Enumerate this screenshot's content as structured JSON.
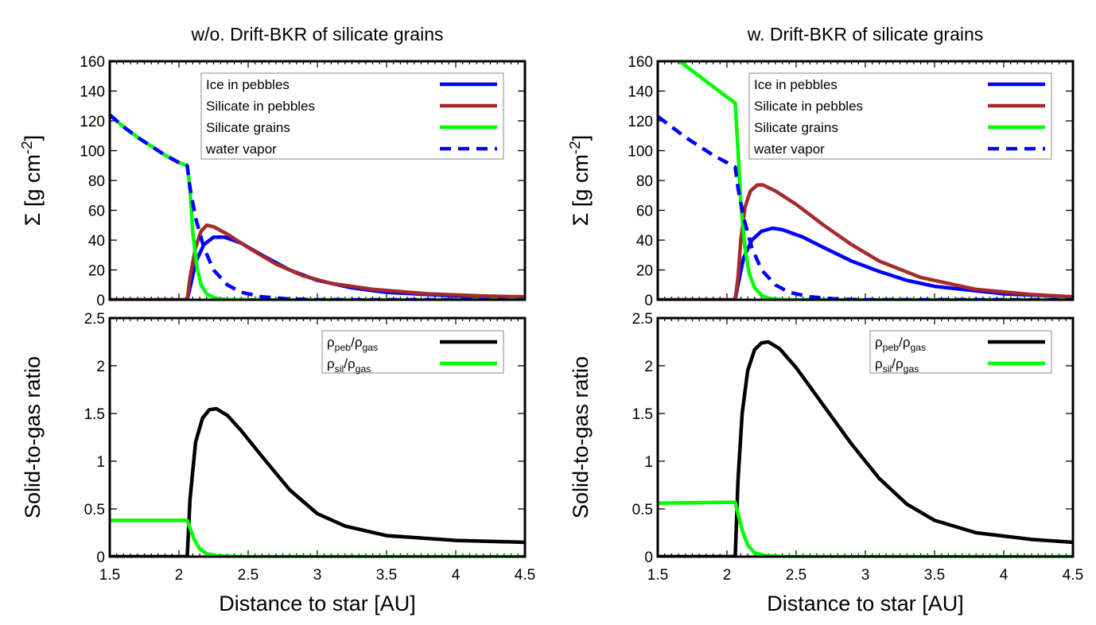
{
  "chart_data": [
    {
      "type": "line",
      "title": "w/o. Drift-BKR of silicate grains",
      "ylabel": "Σ [g cm-2]",
      "xlabel": "",
      "xlim": [
        1.5,
        4.5
      ],
      "ylim": [
        0,
        160
      ],
      "xticks": [
        "1.5",
        "2",
        "2.5",
        "3",
        "3.5",
        "4",
        "4.5"
      ],
      "yticks": [
        "0",
        "20",
        "40",
        "60",
        "80",
        "100",
        "120",
        "140",
        "160"
      ],
      "legend_position": "top-right",
      "series": [
        {
          "name": "Ice in pebbles",
          "color": "#0000ff",
          "dash": "solid",
          "x": [
            1.5,
            2.06,
            2.08,
            2.12,
            2.18,
            2.25,
            2.33,
            2.45,
            2.6,
            2.8,
            3.0,
            3.25,
            3.5,
            4.0,
            4.5
          ],
          "y": [
            0,
            0,
            8,
            25,
            37,
            42,
            42,
            38,
            30,
            20,
            13,
            8,
            5,
            2.5,
            1.5
          ]
        },
        {
          "name": "Silicate in pebbles",
          "color": "#a52a2a",
          "dash": "solid",
          "x": [
            1.5,
            2.06,
            2.08,
            2.12,
            2.16,
            2.2,
            2.25,
            2.35,
            2.5,
            2.7,
            2.9,
            3.1,
            3.4,
            3.8,
            4.2,
            4.5
          ],
          "y": [
            0,
            0,
            15,
            35,
            46,
            50,
            49,
            44,
            35,
            24,
            16,
            11,
            7,
            4,
            2.5,
            2
          ]
        },
        {
          "name": "Silicate grains",
          "color": "#00ff00",
          "dash": "solid",
          "x": [
            1.5,
            1.6,
            1.7,
            1.8,
            1.9,
            2.0,
            2.06,
            2.08,
            2.1,
            2.13,
            2.16,
            2.2,
            2.25,
            2.3,
            2.4,
            4.5
          ],
          "y": [
            124,
            116,
            109,
            103,
            97,
            92,
            90,
            75,
            45,
            22,
            10,
            4,
            1.5,
            0.5,
            0,
            0
          ]
        },
        {
          "name": "water vapor",
          "color": "#0000ff",
          "dash": "dashed",
          "x": [
            1.5,
            1.6,
            1.7,
            1.8,
            1.9,
            2.0,
            2.06,
            2.08,
            2.12,
            2.18,
            2.25,
            2.35,
            2.45,
            2.6,
            2.8,
            3.0,
            4.5
          ],
          "y": [
            124,
            116,
            109,
            103,
            97,
            92,
            90,
            75,
            55,
            35,
            20,
            10,
            5,
            2,
            0.5,
            0,
            0
          ]
        }
      ]
    },
    {
      "type": "line",
      "title": "",
      "ylabel": "Solid-to-gas ratio",
      "xlabel": "Distance to star [AU]",
      "xlim": [
        1.5,
        4.5
      ],
      "ylim": [
        0,
        2.5
      ],
      "xticks": [
        "1.5",
        "2",
        "2.5",
        "3",
        "3.5",
        "4",
        "4.5"
      ],
      "yticks": [
        "0",
        "0.5",
        "1",
        "1.5",
        "2",
        "2.5"
      ],
      "legend_position": "top-right",
      "series": [
        {
          "name": "ρpeb/ρgas",
          "color": "#000000",
          "dash": "solid",
          "x": [
            1.5,
            2.06,
            2.08,
            2.12,
            2.17,
            2.22,
            2.27,
            2.35,
            2.45,
            2.6,
            2.8,
            3.0,
            3.2,
            3.5,
            4.0,
            4.5
          ],
          "y": [
            0,
            0,
            0.6,
            1.2,
            1.45,
            1.54,
            1.55,
            1.48,
            1.32,
            1.05,
            0.7,
            0.45,
            0.32,
            0.22,
            0.17,
            0.15
          ]
        },
        {
          "name": "ρsil/ρgas",
          "color": "#00ff00",
          "dash": "solid",
          "x": [
            1.5,
            2.06,
            2.08,
            2.11,
            2.15,
            2.2,
            2.28,
            2.4,
            4.5
          ],
          "y": [
            0.38,
            0.38,
            0.3,
            0.18,
            0.08,
            0.03,
            0.01,
            0,
            0
          ]
        }
      ]
    },
    {
      "type": "line",
      "title": "w. Drift-BKR of silicate grains",
      "ylabel": "Σ [g cm-2]",
      "xlabel": "",
      "xlim": [
        1.5,
        4.5
      ],
      "ylim": [
        0,
        160
      ],
      "xticks": [
        "1.5",
        "2",
        "2.5",
        "3",
        "3.5",
        "4",
        "4.5"
      ],
      "yticks": [
        "0",
        "20",
        "40",
        "60",
        "80",
        "100",
        "120",
        "140",
        "160"
      ],
      "legend_position": "top-right",
      "series": [
        {
          "name": "Ice in pebbles",
          "color": "#0000ff",
          "dash": "solid",
          "x": [
            1.5,
            2.06,
            2.08,
            2.12,
            2.18,
            2.25,
            2.33,
            2.4,
            2.55,
            2.7,
            2.9,
            3.1,
            3.3,
            3.5,
            4.0,
            4.5
          ],
          "y": [
            0,
            0,
            10,
            28,
            40,
            46,
            48,
            47,
            42,
            35,
            26,
            19,
            13,
            9,
            4,
            2
          ]
        },
        {
          "name": "Silicate in pebbles",
          "color": "#a52a2a",
          "dash": "solid",
          "x": [
            1.5,
            2.06,
            2.08,
            2.1,
            2.13,
            2.17,
            2.22,
            2.26,
            2.35,
            2.5,
            2.7,
            2.9,
            3.1,
            3.4,
            3.8,
            4.2,
            4.5
          ],
          "y": [
            0,
            0,
            15,
            40,
            62,
            73,
            77,
            77,
            73,
            64,
            50,
            37,
            26,
            15,
            7,
            3.5,
            2
          ]
        },
        {
          "name": "Silicate grains",
          "color": "#00ff00",
          "dash": "solid",
          "x": [
            1.5,
            1.6,
            1.7,
            1.8,
            1.9,
            2.0,
            2.06,
            2.08,
            2.1,
            2.13,
            2.16,
            2.2,
            2.25,
            2.3,
            2.4,
            4.5
          ],
          "y": [
            172,
            164,
            157,
            150,
            143,
            136,
            132,
            100,
            65,
            35,
            18,
            8,
            3,
            1,
            0,
            0
          ]
        },
        {
          "name": "water vapor",
          "color": "#0000ff",
          "dash": "dashed",
          "x": [
            1.5,
            1.6,
            1.7,
            1.8,
            1.9,
            2.0,
            2.06,
            2.08,
            2.12,
            2.18,
            2.25,
            2.35,
            2.45,
            2.6,
            2.8,
            3.0,
            4.5
          ],
          "y": [
            123,
            116,
            109,
            103,
            97,
            92,
            89,
            75,
            55,
            35,
            20,
            10,
            5,
            2,
            0.5,
            0,
            0
          ]
        }
      ]
    },
    {
      "type": "line",
      "title": "",
      "ylabel": "Solid-to-gas ratio",
      "xlabel": "Distance to star [AU]",
      "xlim": [
        1.5,
        4.5
      ],
      "ylim": [
        0,
        2.5
      ],
      "xticks": [
        "1.5",
        "2",
        "2.5",
        "3",
        "3.5",
        "4",
        "4.5"
      ],
      "yticks": [
        "0",
        "0.5",
        "1",
        "1.5",
        "2",
        "2.5"
      ],
      "legend_position": "top-right",
      "series": [
        {
          "name": "ρpeb/ρgas",
          "color": "#000000",
          "dash": "solid",
          "x": [
            1.5,
            2.06,
            2.08,
            2.11,
            2.15,
            2.2,
            2.25,
            2.3,
            2.38,
            2.5,
            2.7,
            2.9,
            3.1,
            3.3,
            3.5,
            3.8,
            4.2,
            4.5
          ],
          "y": [
            0,
            0,
            0.8,
            1.5,
            1.95,
            2.17,
            2.24,
            2.25,
            2.18,
            1.98,
            1.58,
            1.18,
            0.82,
            0.55,
            0.38,
            0.25,
            0.18,
            0.15
          ]
        },
        {
          "name": "ρsil/ρgas",
          "color": "#00ff00",
          "dash": "solid",
          "x": [
            1.5,
            2.06,
            2.08,
            2.11,
            2.15,
            2.2,
            2.28,
            2.4,
            4.5
          ],
          "y": [
            0.56,
            0.57,
            0.45,
            0.28,
            0.12,
            0.04,
            0.01,
            0,
            0
          ]
        }
      ]
    }
  ]
}
